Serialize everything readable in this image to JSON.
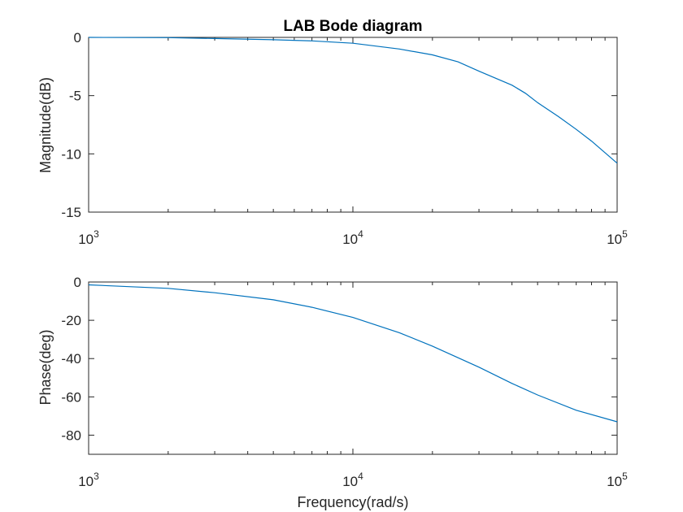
{
  "chart_data": [
    {
      "type": "line",
      "title": "LAB Bode diagram",
      "xlabel": "",
      "ylabel": "Magnitude(dB)",
      "xscale": "log",
      "xlim": [
        1000,
        100000
      ],
      "ylim": [
        -15,
        0
      ],
      "xticks": [
        {
          "base": "10",
          "exp": "3"
        },
        {
          "base": "10",
          "exp": "4"
        },
        {
          "base": "10",
          "exp": "5"
        }
      ],
      "yticks": [
        "0",
        "-5",
        "-10",
        "-15"
      ],
      "color": "#0072BD",
      "grid": false,
      "series": [
        {
          "x": [
            1000,
            2000,
            3000,
            5000,
            7000,
            10000,
            15000,
            20000,
            25000,
            30000,
            40000,
            45000,
            50000,
            60000,
            70000,
            80000,
            100000
          ],
          "y": [
            0,
            -0.02,
            -0.1,
            -0.2,
            -0.3,
            -0.5,
            -1.0,
            -1.5,
            -2.1,
            -2.9,
            -4.1,
            -4.8,
            -5.6,
            -6.8,
            -7.9,
            -8.9,
            -10.8
          ]
        }
      ]
    },
    {
      "type": "line",
      "title": "",
      "xlabel": "Frequency(rad/s)",
      "ylabel": "Phase(deg)",
      "xscale": "log",
      "xlim": [
        1000,
        100000
      ],
      "ylim": [
        -90,
        0
      ],
      "xticks": [
        {
          "base": "10",
          "exp": "3"
        },
        {
          "base": "10",
          "exp": "4"
        },
        {
          "base": "10",
          "exp": "5"
        }
      ],
      "yticks": [
        "0",
        "-20",
        "-40",
        "-60",
        "-80"
      ],
      "color": "#0072BD",
      "grid": false,
      "series": [
        {
          "x": [
            1000,
            2000,
            3000,
            5000,
            7000,
            10000,
            15000,
            20000,
            30000,
            40000,
            50000,
            70000,
            100000
          ],
          "y": [
            -1.5,
            -3.3,
            -5.6,
            -9.3,
            -13.2,
            -18.5,
            -26.5,
            -33.5,
            -44.5,
            -53,
            -59,
            -67,
            -73
          ]
        }
      ]
    }
  ]
}
